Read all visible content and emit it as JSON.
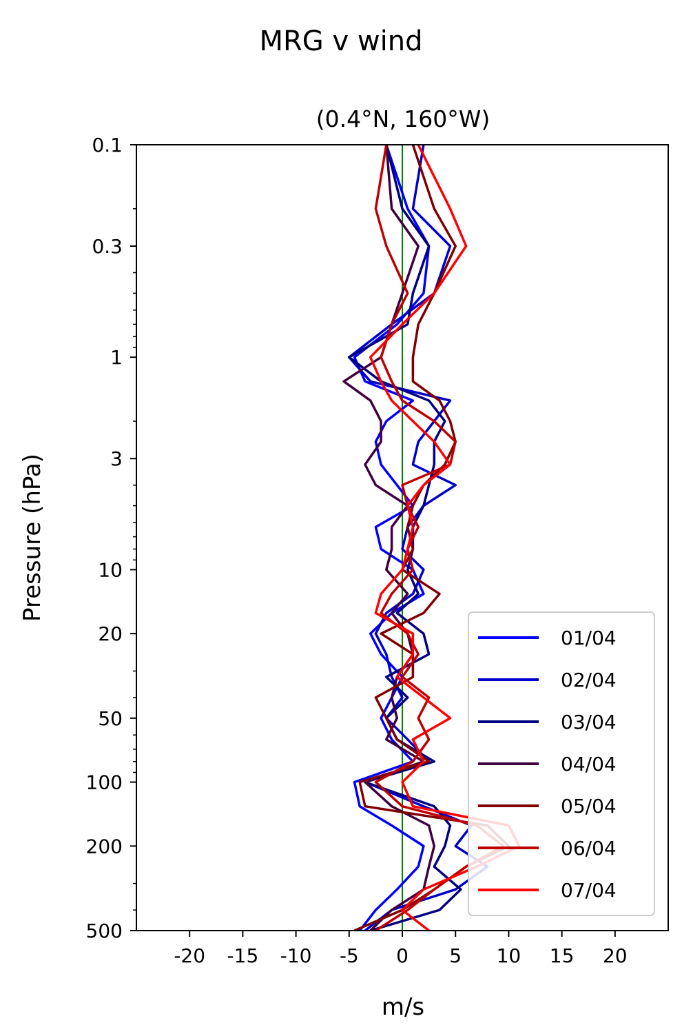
{
  "chart_data": {
    "type": "line",
    "title": "MRG v wind",
    "subtitle": "(0.4°N, 160°W)",
    "xlabel": "m/s",
    "ylabel": "Pressure (hPa)",
    "xlim": [
      -25,
      25
    ],
    "ylim": [
      500,
      0.1
    ],
    "y_scale": "log",
    "x_ticks": [
      -20,
      -15,
      -10,
      -5,
      0,
      5,
      10,
      15,
      20
    ],
    "x_tick_labels": [
      "-20",
      "-15",
      "-10",
      "-5",
      "0",
      "5",
      "10",
      "15",
      "20"
    ],
    "y_ticks": [
      0.1,
      0.3,
      1,
      3,
      10,
      20,
      50,
      100,
      200,
      500
    ],
    "y_tick_labels": [
      "0.1",
      "0.3",
      "1",
      "3",
      "10",
      "20",
      "50",
      "100",
      "200",
      "500"
    ],
    "grid": false,
    "legend_position": "bottom-right",
    "zero_line_color": "#008000",
    "series": [
      {
        "name": "01/04",
        "color": "#0000ff",
        "p": [
          0.1,
          0.2,
          0.3,
          0.5,
          0.7,
          1.0,
          1.3,
          1.6,
          2.0,
          2.5,
          3.2,
          4.0,
          5.0,
          6.3,
          8.0,
          10,
          13,
          16,
          20,
          25,
          32,
          40,
          50,
          63,
          80,
          100,
          130,
          160,
          200,
          250,
          320,
          400,
          500
        ],
        "v": [
          -1.5,
          0.5,
          2.5,
          2.0,
          -0.5,
          -4.5,
          -3.5,
          1.0,
          -1.5,
          -2.5,
          -2.0,
          -0.5,
          1.0,
          -2.5,
          -2.0,
          1.0,
          2.0,
          -1.0,
          -3.0,
          -2.0,
          0.0,
          -1.0,
          -2.0,
          -1.0,
          1.0,
          -4.5,
          -4.0,
          -1.0,
          2.0,
          1.5,
          -0.5,
          -2.5,
          -4.0
        ]
      },
      {
        "name": "02/04",
        "color": "#0000cc",
        "p": [
          0.1,
          0.2,
          0.3,
          0.5,
          0.7,
          1.0,
          1.3,
          1.6,
          2.0,
          2.5,
          3.2,
          4.0,
          5.0,
          6.3,
          8.0,
          10,
          13,
          16,
          20,
          25,
          32,
          40,
          50,
          63,
          80,
          100,
          130,
          160,
          200,
          250,
          320,
          400,
          500
        ],
        "v": [
          2.0,
          1.0,
          4.5,
          3.0,
          -1.0,
          -5.0,
          -3.0,
          4.5,
          3.0,
          1.5,
          1.0,
          5.0,
          2.0,
          0.5,
          0.0,
          2.0,
          1.0,
          -1.5,
          -2.5,
          -1.5,
          -1.0,
          0.0,
          -1.5,
          0.5,
          2.5,
          -3.5,
          2.0,
          6.5,
          5.0,
          8.0,
          5.0,
          -1.0,
          -3.5
        ]
      },
      {
        "name": "03/04",
        "color": "#000080",
        "p": [
          0.1,
          0.2,
          0.3,
          0.5,
          0.7,
          1.0,
          1.3,
          1.6,
          2.0,
          2.5,
          3.2,
          4.0,
          5.0,
          6.3,
          8.0,
          10,
          13,
          16,
          20,
          25,
          32,
          40,
          50,
          63,
          80,
          100,
          130,
          160,
          200,
          250,
          320,
          400,
          500
        ],
        "v": [
          -1.5,
          0.0,
          2.5,
          1.0,
          0.5,
          -5.0,
          -2.0,
          2.5,
          4.0,
          3.0,
          3.0,
          2.5,
          2.0,
          1.0,
          1.0,
          0.5,
          1.5,
          -0.5,
          2.0,
          2.5,
          -1.5,
          0.5,
          -1.5,
          -0.5,
          3.0,
          -3.5,
          3.0,
          4.5,
          4.0,
          3.0,
          5.5,
          3.5,
          -3.0
        ]
      },
      {
        "name": "04/04",
        "color": "#400040",
        "p": [
          0.1,
          0.2,
          0.3,
          0.5,
          0.7,
          1.0,
          1.3,
          1.6,
          2.0,
          2.5,
          3.2,
          4.0,
          5.0,
          6.3,
          8.0,
          10,
          13,
          16,
          20,
          25,
          32,
          40,
          50,
          63,
          80,
          100,
          130,
          160,
          200,
          250,
          320,
          400,
          500
        ],
        "v": [
          -1.5,
          -1.0,
          1.5,
          0.0,
          -1.0,
          -2.0,
          -5.5,
          -3.0,
          -2.0,
          -2.0,
          -3.5,
          -2.5,
          0.5,
          -1.0,
          -1.0,
          -1.5,
          0.5,
          -1.0,
          0.5,
          1.0,
          -0.5,
          -1.0,
          -0.5,
          -1.5,
          2.0,
          -3.5,
          -1.0,
          2.5,
          3.0,
          2.5,
          2.0,
          -1.0,
          -3.0
        ]
      },
      {
        "name": "05/04",
        "color": "#800000",
        "p": [
          0.1,
          0.2,
          0.3,
          0.5,
          0.7,
          1.0,
          1.3,
          1.6,
          2.0,
          2.5,
          3.2,
          4.0,
          5.0,
          6.3,
          8.0,
          10,
          13,
          16,
          20,
          25,
          32,
          40,
          50,
          63,
          80,
          100,
          130,
          160,
          200,
          250,
          320,
          400,
          500
        ],
        "v": [
          1.0,
          3.0,
          5.0,
          3.0,
          1.5,
          1.0,
          1.0,
          3.5,
          4.5,
          5.0,
          4.0,
          2.0,
          1.0,
          0.5,
          1.0,
          0.0,
          3.5,
          2.0,
          -2.0,
          1.0,
          1.0,
          -2.5,
          -1.5,
          -0.5,
          2.5,
          -4.0,
          -3.5,
          8.0,
          10.0,
          6.0,
          3.0,
          0.0,
          -4.5
        ]
      },
      {
        "name": "06/04",
        "color": "#c00000",
        "p": [
          0.1,
          0.2,
          0.3,
          0.5,
          0.7,
          1.0,
          1.3,
          1.6,
          2.0,
          2.5,
          3.2,
          4.0,
          5.0,
          6.3,
          8.0,
          10,
          13,
          16,
          20,
          25,
          32,
          40,
          50,
          63,
          80,
          100,
          130,
          160,
          200,
          250,
          320,
          400,
          500
        ],
        "v": [
          -1.5,
          -2.5,
          -1.5,
          0.5,
          -1.0,
          -2.0,
          -1.0,
          0.0,
          3.0,
          5.0,
          4.5,
          0.0,
          0.5,
          1.5,
          0.5,
          1.0,
          -1.0,
          -2.0,
          0.5,
          1.5,
          0.0,
          2.5,
          1.5,
          2.5,
          1.0,
          -2.5,
          0.0,
          7.0,
          9.5,
          6.0,
          3.0,
          0.5,
          -2.5
        ]
      },
      {
        "name": "07/04",
        "color": "#ff0000",
        "p": [
          0.1,
          0.2,
          0.3,
          0.5,
          0.7,
          1.0,
          1.3,
          1.6,
          2.0,
          2.5,
          3.2,
          4.0,
          5.0,
          6.3,
          8.0,
          10,
          13,
          16,
          20,
          25,
          32,
          40,
          50,
          63,
          80,
          100,
          130,
          160,
          200,
          250,
          320,
          400,
          500
        ],
        "v": [
          1.5,
          4.5,
          6.0,
          3.0,
          0.0,
          -3.0,
          -2.0,
          -1.0,
          1.0,
          3.0,
          4.5,
          2.0,
          0.5,
          1.0,
          0.5,
          0.0,
          -2.0,
          -2.5,
          1.0,
          1.0,
          -0.5,
          2.0,
          4.5,
          1.0,
          2.0,
          0.0,
          1.0,
          10.0,
          11.0,
          7.0,
          2.0,
          0.0,
          2.5
        ]
      }
    ]
  }
}
